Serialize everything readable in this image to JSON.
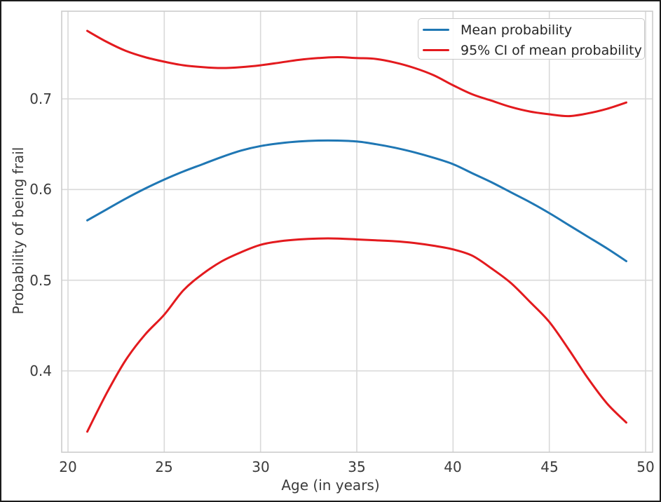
{
  "chart_data": {
    "type": "line",
    "title": "",
    "xlabel": "Age (in years)",
    "ylabel": "Probability of being frail",
    "x": [
      21,
      22,
      23,
      24,
      25,
      26,
      27,
      28,
      29,
      30,
      31,
      32,
      33,
      34,
      35,
      36,
      37,
      38,
      39,
      40,
      41,
      42,
      43,
      44,
      45,
      46,
      47,
      48,
      49
    ],
    "series": [
      {
        "name": "Mean probability",
        "color": "#1f77b4",
        "values": [
          0.566,
          0.578,
          0.59,
          0.601,
          0.611,
          0.62,
          0.628,
          0.636,
          0.643,
          0.648,
          0.651,
          0.653,
          0.654,
          0.654,
          0.653,
          0.65,
          0.646,
          0.641,
          0.635,
          0.628,
          0.618,
          0.608,
          0.597,
          0.586,
          0.574,
          0.561,
          0.548,
          0.535,
          0.521
        ]
      },
      {
        "name": "95% CI upper bound",
        "color": "#e31a1e",
        "values": [
          0.775,
          0.763,
          0.753,
          0.746,
          0.741,
          0.737,
          0.735,
          0.734,
          0.735,
          0.737,
          0.74,
          0.743,
          0.745,
          0.746,
          0.745,
          0.744,
          0.74,
          0.734,
          0.726,
          0.715,
          0.705,
          0.698,
          0.691,
          0.686,
          0.683,
          0.681,
          0.684,
          0.689,
          0.696
        ]
      },
      {
        "name": "95% CI lower bound",
        "color": "#e31a1e",
        "values": [
          0.333,
          0.375,
          0.412,
          0.44,
          0.462,
          0.489,
          0.507,
          0.521,
          0.531,
          0.539,
          0.543,
          0.545,
          0.546,
          0.546,
          0.545,
          0.544,
          0.543,
          0.541,
          0.538,
          0.534,
          0.527,
          0.513,
          0.497,
          0.476,
          0.454,
          0.424,
          0.392,
          0.364,
          0.343
        ]
      }
    ],
    "legend": {
      "position": "upper right",
      "entries": [
        {
          "label": "Mean probability",
          "color": "#1f77b4"
        },
        {
          "label": "95% CI of mean probability",
          "color": "#e31a1e"
        }
      ]
    },
    "xlim": [
      19.6,
      50.4
    ],
    "ylim": [
      0.31,
      0.797
    ],
    "xticks": [
      20,
      25,
      30,
      35,
      40,
      45,
      50
    ],
    "xtick_labels": [
      "20",
      "25",
      "30",
      "35",
      "40",
      "45",
      "50"
    ],
    "yticks": [
      0.4,
      0.5,
      0.6,
      0.7
    ],
    "ytick_labels": [
      "0.4",
      "0.5",
      "0.6",
      "0.7"
    ],
    "grid": true,
    "grid_color": "#d9d9d9",
    "spine_color": "#cccccc",
    "background": "#ffffff"
  }
}
